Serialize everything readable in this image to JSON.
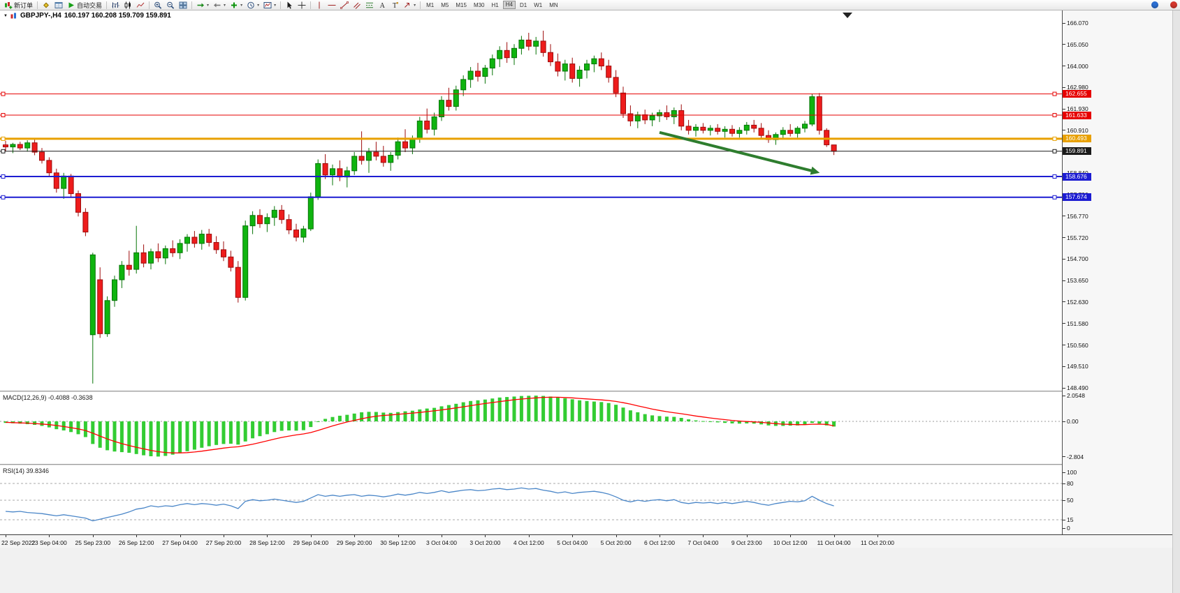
{
  "toolbar": {
    "new_order": "新订单",
    "auto_trading": "自动交易",
    "timeframes": [
      "M1",
      "M5",
      "M15",
      "M30",
      "H1",
      "H4",
      "D1",
      "W1",
      "MN"
    ],
    "active_timeframe": "H4"
  },
  "chart_header": {
    "symbol_period": "GBPJPY-,H4",
    "ohlc": "160.197 160.208 159.709 159.891"
  },
  "chart_data": {
    "type": "candlestick",
    "symbol": "GBPJPY-",
    "period": "H4",
    "current_ohlc": {
      "open": 160.197,
      "high": 160.208,
      "low": 159.709,
      "close": 159.891
    },
    "y_range": [
      148.49,
      166.07
    ],
    "price_axis_labels": [
      "166.070",
      "165.050",
      "164.000",
      "162.980",
      "161.930",
      "160.910",
      "159.860",
      "158.840",
      "157.790",
      "156.770",
      "155.720",
      "154.700",
      "153.650",
      "152.630",
      "151.580",
      "150.560",
      "149.510",
      "148.490"
    ],
    "time_axis_labels": [
      "22 Sep 2022",
      "23 Sep 04:00",
      "25 Sep 23:00",
      "26 Sep 12:00",
      "27 Sep 04:00",
      "27 Sep 20:00",
      "28 Sep 12:00",
      "29 Sep 04:00",
      "29 Sep 20:00",
      "30 Sep 12:00",
      "3 Oct 04:00",
      "3 Oct 20:00",
      "4 Oct 12:00",
      "5 Oct 04:00",
      "5 Oct 20:00",
      "6 Oct 12:00",
      "7 Oct 04:00",
      "9 Oct 23:00",
      "10 Oct 12:00",
      "11 Oct 04:00",
      "11 Oct 20:00"
    ],
    "colors": {
      "bull": "#0fb40f",
      "bull_border": "#077407",
      "bear": "#ee1c1c",
      "bear_border": "#9e0c0c"
    },
    "candles": [
      [
        160.2,
        160.4,
        159.9,
        160.1
      ],
      [
        160.1,
        160.3,
        159.8,
        160.22
      ],
      [
        160.22,
        160.35,
        159.95,
        160.05
      ],
      [
        160.05,
        160.42,
        159.88,
        160.3
      ],
      [
        160.3,
        160.45,
        159.7,
        159.85
      ],
      [
        159.85,
        160.05,
        159.3,
        159.45
      ],
      [
        159.45,
        159.6,
        158.7,
        158.85
      ],
      [
        158.85,
        159.05,
        157.9,
        158.1
      ],
      [
        158.1,
        158.85,
        157.6,
        158.7
      ],
      [
        158.7,
        158.8,
        157.65,
        157.85
      ],
      [
        157.85,
        158.0,
        156.75,
        156.95
      ],
      [
        156.95,
        157.15,
        155.8,
        156.0
      ],
      [
        151.05,
        155.0,
        148.7,
        154.9
      ],
      [
        153.7,
        154.3,
        150.9,
        151.1
      ],
      [
        151.1,
        152.9,
        150.95,
        152.7
      ],
      [
        152.7,
        153.9,
        152.4,
        153.7
      ],
      [
        153.7,
        154.6,
        153.3,
        154.4
      ],
      [
        154.4,
        155.1,
        153.9,
        154.2
      ],
      [
        154.2,
        156.3,
        154.0,
        155.0
      ],
      [
        155.0,
        155.4,
        154.3,
        154.5
      ],
      [
        154.5,
        155.2,
        154.2,
        155.05
      ],
      [
        155.05,
        155.45,
        154.55,
        154.75
      ],
      [
        154.75,
        155.35,
        154.45,
        155.2
      ],
      [
        155.2,
        155.6,
        154.8,
        155.0
      ],
      [
        155.0,
        155.65,
        154.7,
        155.45
      ],
      [
        155.45,
        155.9,
        155.05,
        155.75
      ],
      [
        155.75,
        156.05,
        155.25,
        155.45
      ],
      [
        155.45,
        156.1,
        155.15,
        155.9
      ],
      [
        155.9,
        156.15,
        155.3,
        155.5
      ],
      [
        155.5,
        155.8,
        154.95,
        155.15
      ],
      [
        155.15,
        155.55,
        154.6,
        154.8
      ],
      [
        154.8,
        155.1,
        154.1,
        154.3
      ],
      [
        154.3,
        154.6,
        152.6,
        152.85
      ],
      [
        152.85,
        156.55,
        152.7,
        156.3
      ],
      [
        156.3,
        157.0,
        155.9,
        156.8
      ],
      [
        156.8,
        157.1,
        156.2,
        156.4
      ],
      [
        156.4,
        156.9,
        156.0,
        156.7
      ],
      [
        156.7,
        157.25,
        156.3,
        157.05
      ],
      [
        157.05,
        157.3,
        156.4,
        156.6
      ],
      [
        156.6,
        156.85,
        155.9,
        156.1
      ],
      [
        156.1,
        156.4,
        155.55,
        155.75
      ],
      [
        155.75,
        156.3,
        155.5,
        156.15
      ],
      [
        156.15,
        157.9,
        156.05,
        157.7
      ],
      [
        157.7,
        159.5,
        157.55,
        159.3
      ],
      [
        159.3,
        159.75,
        158.55,
        158.75
      ],
      [
        158.75,
        159.25,
        158.25,
        159.05
      ],
      [
        159.05,
        159.45,
        158.45,
        158.65
      ],
      [
        158.65,
        159.15,
        158.15,
        158.95
      ],
      [
        158.95,
        159.85,
        158.75,
        159.65
      ],
      [
        159.65,
        160.85,
        159.25,
        159.45
      ],
      [
        159.45,
        160.05,
        158.85,
        159.85
      ],
      [
        159.85,
        160.35,
        159.45,
        159.65
      ],
      [
        159.65,
        160.15,
        159.15,
        159.35
      ],
      [
        159.35,
        159.85,
        158.95,
        159.7
      ],
      [
        159.7,
        160.55,
        159.5,
        160.35
      ],
      [
        160.35,
        160.95,
        159.85,
        160.05
      ],
      [
        160.05,
        160.65,
        159.75,
        160.5
      ],
      [
        160.5,
        161.55,
        160.3,
        161.35
      ],
      [
        161.35,
        161.95,
        160.75,
        160.95
      ],
      [
        160.95,
        161.75,
        160.65,
        161.55
      ],
      [
        161.55,
        162.55,
        161.35,
        162.35
      ],
      [
        162.35,
        162.95,
        161.85,
        162.05
      ],
      [
        162.05,
        163.05,
        161.85,
        162.85
      ],
      [
        162.85,
        163.55,
        162.55,
        163.35
      ],
      [
        163.35,
        163.95,
        162.95,
        163.75
      ],
      [
        163.75,
        164.15,
        163.25,
        163.5
      ],
      [
        163.5,
        164.05,
        163.15,
        163.9
      ],
      [
        163.9,
        164.55,
        163.55,
        164.35
      ],
      [
        164.35,
        164.95,
        163.95,
        164.75
      ],
      [
        164.75,
        165.15,
        164.15,
        164.4
      ],
      [
        164.4,
        165.05,
        164.05,
        164.85
      ],
      [
        164.85,
        165.45,
        164.55,
        165.25
      ],
      [
        165.25,
        165.6,
        164.75,
        164.95
      ],
      [
        164.95,
        165.4,
        164.55,
        165.2
      ],
      [
        165.2,
        165.7,
        164.45,
        164.65
      ],
      [
        164.65,
        165.05,
        164.0,
        164.2
      ],
      [
        164.2,
        164.6,
        163.5,
        163.75
      ],
      [
        163.75,
        164.3,
        163.3,
        164.1
      ],
      [
        164.1,
        164.4,
        163.2,
        163.4
      ],
      [
        163.4,
        164.0,
        163.0,
        163.8
      ],
      [
        163.8,
        164.3,
        163.4,
        164.1
      ],
      [
        164.1,
        164.5,
        163.7,
        164.35
      ],
      [
        164.35,
        164.65,
        163.8,
        164.0
      ],
      [
        164.0,
        164.3,
        163.2,
        163.45
      ],
      [
        163.45,
        163.8,
        162.5,
        162.7
      ],
      [
        162.7,
        163.0,
        161.5,
        161.7
      ],
      [
        161.7,
        162.1,
        161.1,
        161.35
      ],
      [
        161.35,
        161.8,
        161.0,
        161.65
      ],
      [
        161.65,
        161.9,
        161.2,
        161.4
      ],
      [
        161.4,
        161.75,
        161.1,
        161.6
      ],
      [
        161.6,
        161.9,
        161.3,
        161.75
      ],
      [
        161.75,
        162.1,
        161.4,
        161.55
      ],
      [
        161.55,
        162.0,
        161.2,
        161.85
      ],
      [
        161.85,
        162.15,
        160.9,
        161.1
      ],
      [
        161.1,
        161.4,
        160.7,
        160.9
      ],
      [
        160.9,
        161.2,
        160.6,
        161.05
      ],
      [
        161.05,
        161.25,
        160.75,
        160.9
      ],
      [
        160.9,
        161.15,
        160.65,
        161.0
      ],
      [
        161.0,
        161.2,
        160.7,
        160.85
      ],
      [
        160.85,
        161.1,
        160.55,
        160.95
      ],
      [
        160.95,
        161.15,
        160.6,
        160.75
      ],
      [
        160.75,
        161.05,
        160.55,
        160.9
      ],
      [
        160.9,
        161.3,
        160.7,
        161.15
      ],
      [
        161.15,
        161.4,
        160.8,
        161.0
      ],
      [
        161.0,
        161.25,
        160.5,
        160.65
      ],
      [
        160.65,
        160.9,
        160.3,
        160.45
      ],
      [
        160.45,
        160.8,
        160.2,
        160.7
      ],
      [
        160.7,
        161.05,
        160.45,
        160.9
      ],
      [
        160.9,
        161.2,
        160.6,
        160.75
      ],
      [
        160.75,
        161.1,
        160.55,
        161.0
      ],
      [
        161.0,
        161.35,
        160.8,
        161.2
      ],
      [
        161.2,
        162.66,
        161.1,
        162.52
      ],
      [
        162.52,
        162.7,
        160.7,
        160.9
      ],
      [
        160.9,
        161.0,
        160.1,
        160.2
      ],
      [
        160.197,
        160.208,
        159.709,
        159.891
      ]
    ],
    "horizontal_lines": [
      {
        "price": 162.655,
        "label": "162.655",
        "color": "#e60000",
        "width": 1
      },
      {
        "price": 161.633,
        "label": "161.633",
        "color": "#e60000",
        "width": 1
      },
      {
        "price": 160.493,
        "label": "160.493",
        "color": "#e8a000",
        "width": 3
      },
      {
        "price": 159.891,
        "label": "159.891",
        "color": "#1a1a1a",
        "width": 1
      },
      {
        "price": 158.676,
        "label": "158.676",
        "color": "#1c1cd2",
        "width": 2
      },
      {
        "price": 157.674,
        "label": "157.674",
        "color": "#1c1cd2",
        "width": 2
      }
    ],
    "trend_arrow": {
      "from_bar": 90,
      "from_price": 160.8,
      "to_bar": 111.3,
      "to_price": 158.92,
      "color": "#2e7d2e"
    },
    "indicators": [
      {
        "type": "macd",
        "label": "MACD(12,26,9) -0.4088 -0.3638",
        "macd_value": -0.4088,
        "signal_value": -0.3638,
        "scale": {
          "max": "2.0548",
          "zero": "0.00",
          "min": "-2.804"
        },
        "colors": {
          "histogram": "#33cc33",
          "signal": "#ff0000"
        },
        "histogram": [
          -0.12,
          -0.15,
          -0.18,
          -0.22,
          -0.28,
          -0.36,
          -0.48,
          -0.62,
          -0.72,
          -0.85,
          -1.02,
          -1.25,
          -1.8,
          -2.1,
          -2.3,
          -2.4,
          -2.45,
          -2.5,
          -2.6,
          -2.7,
          -2.78,
          -2.8,
          -2.75,
          -2.65,
          -2.52,
          -2.38,
          -2.25,
          -2.1,
          -1.98,
          -1.88,
          -1.8,
          -1.78,
          -1.85,
          -1.6,
          -1.35,
          -1.18,
          -1.02,
          -0.85,
          -0.75,
          -0.72,
          -0.74,
          -0.7,
          -0.45,
          -0.05,
          0.2,
          0.35,
          0.45,
          0.52,
          0.62,
          0.72,
          0.76,
          0.75,
          0.7,
          0.68,
          0.74,
          0.8,
          0.85,
          0.95,
          1.02,
          1.08,
          1.2,
          1.3,
          1.4,
          1.52,
          1.62,
          1.68,
          1.74,
          1.82,
          1.9,
          1.94,
          1.98,
          2.02,
          2.04,
          2.05,
          2.03,
          1.98,
          1.9,
          1.84,
          1.76,
          1.68,
          1.62,
          1.58,
          1.54,
          1.46,
          1.32,
          1.1,
          0.88,
          0.72,
          0.58,
          0.48,
          0.42,
          0.38,
          0.36,
          0.28,
          0.16,
          0.08,
          0.02,
          -0.04,
          -0.08,
          -0.12,
          -0.16,
          -0.18,
          -0.16,
          -0.18,
          -0.24,
          -0.32,
          -0.36,
          -0.36,
          -0.34,
          -0.32,
          -0.28,
          -0.12,
          -0.18,
          -0.32,
          -0.4088
        ],
        "signal": [
          -0.08,
          -0.1,
          -0.12,
          -0.14,
          -0.17,
          -0.21,
          -0.26,
          -0.33,
          -0.41,
          -0.5,
          -0.6,
          -0.73,
          -0.94,
          -1.17,
          -1.4,
          -1.6,
          -1.77,
          -1.92,
          -2.06,
          -2.19,
          -2.31,
          -2.41,
          -2.48,
          -2.51,
          -2.51,
          -2.49,
          -2.44,
          -2.37,
          -2.29,
          -2.21,
          -2.13,
          -2.06,
          -2.02,
          -1.93,
          -1.82,
          -1.69,
          -1.55,
          -1.41,
          -1.28,
          -1.17,
          -1.08,
          -1.0,
          -0.89,
          -0.72,
          -0.54,
          -0.36,
          -0.2,
          -0.05,
          0.08,
          0.21,
          0.32,
          0.41,
          0.47,
          0.51,
          0.56,
          0.61,
          0.66,
          0.71,
          0.78,
          0.84,
          0.91,
          0.99,
          1.07,
          1.16,
          1.25,
          1.34,
          1.42,
          1.5,
          1.58,
          1.65,
          1.72,
          1.78,
          1.83,
          1.87,
          1.91,
          1.92,
          1.92,
          1.9,
          1.87,
          1.83,
          1.79,
          1.75,
          1.71,
          1.66,
          1.59,
          1.49,
          1.37,
          1.24,
          1.11,
          0.98,
          0.87,
          0.77,
          0.69,
          0.61,
          0.52,
          0.43,
          0.35,
          0.27,
          0.2,
          0.14,
          0.08,
          0.03,
          -0.01,
          -0.04,
          -0.08,
          -0.13,
          -0.18,
          -0.22,
          -0.24,
          -0.26,
          -0.26,
          -0.23,
          -0.22,
          -0.24,
          -0.3638
        ]
      },
      {
        "type": "rsi",
        "label": "RSI(14) 39.8346",
        "value": 39.8346,
        "color": "#4a86c8",
        "levels": [
          80,
          50,
          15
        ],
        "scale_labels": [
          "100",
          "80",
          "50",
          "15",
          "0"
        ],
        "values": [
          30,
          29,
          30,
          28,
          27,
          26,
          24,
          22,
          24,
          22,
          20,
          18,
          13,
          16,
          19,
          22,
          25,
          29,
          34,
          36,
          40,
          38,
          40,
          39,
          42,
          44,
          42,
          44,
          43,
          41,
          43,
          40,
          35,
          48,
          51,
          49,
          50,
          52,
          50,
          48,
          46,
          48,
          54,
          60,
          57,
          59,
          57,
          59,
          60,
          57,
          59,
          58,
          56,
          58,
          61,
          59,
          61,
          64,
          62,
          64,
          67,
          64,
          66,
          68,
          69,
          67,
          68,
          70,
          71,
          69,
          70,
          72,
          70,
          71,
          68,
          66,
          63,
          65,
          62,
          64,
          65,
          66,
          64,
          61,
          56,
          50,
          47,
          50,
          48,
          50,
          51,
          49,
          51,
          46,
          44,
          46,
          45,
          46,
          44,
          46,
          44,
          46,
          48,
          46,
          43,
          41,
          44,
          46,
          48,
          47,
          49,
          57,
          50,
          44,
          39.83
        ]
      }
    ]
  }
}
